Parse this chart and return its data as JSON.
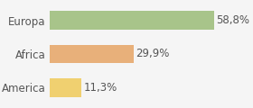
{
  "categories": [
    "America",
    "Africa",
    "Europa"
  ],
  "values": [
    11.3,
    29.9,
    58.8
  ],
  "labels": [
    "11,3%",
    "29,9%",
    "58,8%"
  ],
  "bar_colors": [
    "#f0d070",
    "#e8b07a",
    "#a8c48a"
  ],
  "background_color": "#f5f5f5",
  "xlim": [
    0,
    72
  ],
  "bar_height": 0.55,
  "label_fontsize": 8.5,
  "tick_fontsize": 8.5
}
